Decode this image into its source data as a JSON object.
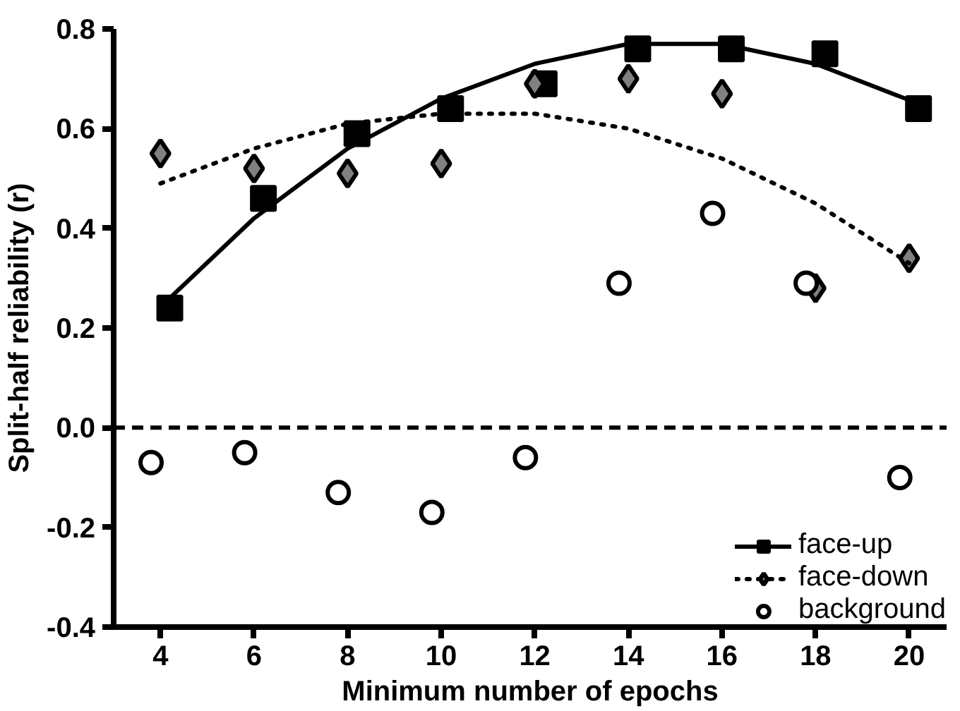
{
  "chart_data": {
    "type": "scatter",
    "xlabel": "Minimum number of epochs",
    "ylabel": "Split-half reliability (r)",
    "xlim": [
      3,
      20.8
    ],
    "xticks": [
      4,
      6,
      8,
      10,
      12,
      14,
      16,
      18,
      20
    ],
    "ylim": [
      -0.4,
      0.8
    ],
    "yticks": [
      -0.4,
      -0.2,
      {
        "value": 0,
        "label": "0.0"
      },
      0.2,
      0.4,
      0.6,
      0.8
    ],
    "grid": false,
    "legend": "bottom right",
    "ref_lines": [
      {
        "axis": "y",
        "value": 0,
        "line_style": "dashed",
        "color": "#000000"
      }
    ],
    "series": [
      {
        "name": "face-up",
        "marker": "square",
        "color": "#000000",
        "x": [
          4.2,
          6.2,
          8.2,
          10.2,
          12.2,
          14.2,
          16.2,
          18.2,
          20.2
        ],
        "values": [
          0.24,
          0.46,
          0.59,
          0.64,
          0.69,
          0.76,
          0.76,
          0.75,
          0.64
        ]
      },
      {
        "type": "line",
        "line_style": "solid",
        "color": "#000000",
        "x": [
          4.2,
          6,
          8,
          10,
          12,
          14,
          15,
          16,
          18,
          20.2
        ],
        "values": [
          0.26,
          0.42,
          0.56,
          0.66,
          0.73,
          0.77,
          0.77,
          0.77,
          0.73,
          0.65
        ]
      },
      {
        "name": "face-down",
        "marker": "diamond",
        "color": "#808080",
        "x": [
          4,
          6,
          8,
          10,
          12,
          14,
          16,
          18,
          20
        ],
        "values": [
          0.55,
          0.52,
          0.51,
          0.53,
          0.69,
          0.7,
          0.67,
          0.28,
          0.34
        ]
      },
      {
        "type": "line",
        "line_style": "dotted",
        "color": "#000000",
        "x": [
          4,
          6,
          8,
          10,
          12,
          14,
          16,
          18,
          20
        ],
        "values": [
          0.49,
          0.56,
          0.61,
          0.63,
          0.63,
          0.6,
          0.54,
          0.45,
          0.33
        ]
      },
      {
        "name": "background",
        "marker": "circle",
        "color": "#000000",
        "x": [
          3.8,
          5.8,
          7.8,
          9.8,
          11.8,
          13.8,
          15.8,
          17.8,
          19.8
        ],
        "values": [
          -0.07,
          -0.05,
          -0.13,
          -0.17,
          -0.06,
          0.29,
          0.43,
          0.29,
          -0.1
        ]
      }
    ]
  }
}
